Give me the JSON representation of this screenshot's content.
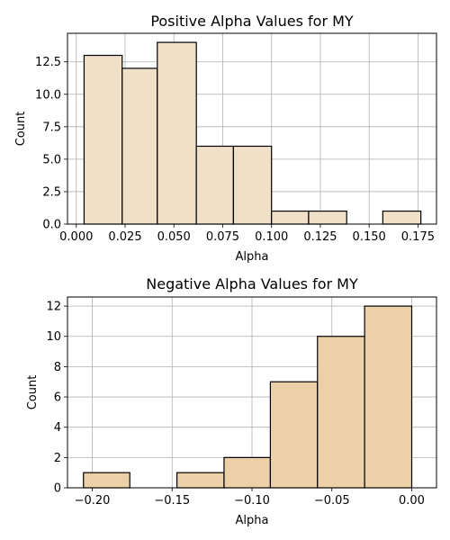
{
  "figure": {
    "background": "#ffffff"
  },
  "chart_data": [
    {
      "type": "histogram",
      "title": "Positive Alpha Values for MY",
      "xlabel": "Alpha",
      "ylabel": "Count",
      "bar_color": "#f0e0c8",
      "edge_color": "#000000",
      "grid": true,
      "xlim": [
        -0.0045,
        0.1845
      ],
      "ylim": [
        0,
        14.7
      ],
      "xticks": [
        0.0,
        0.025,
        0.05,
        0.075,
        0.1,
        0.125,
        0.15,
        0.175
      ],
      "xtick_labels": [
        "0.000",
        "0.025",
        "0.050",
        "0.075",
        "0.100",
        "0.125",
        "0.150",
        "0.175"
      ],
      "yticks": [
        0,
        2.5,
        5,
        7.5,
        10,
        12.5
      ],
      "ytick_labels": [
        "0.0",
        "2.5",
        "5.0",
        "7.5",
        "10.0",
        "12.5"
      ],
      "bins": [
        {
          "start": 0.004,
          "end": 0.0235,
          "count": 13
        },
        {
          "start": 0.0235,
          "end": 0.0415,
          "count": 12
        },
        {
          "start": 0.0415,
          "end": 0.0615,
          "count": 14
        },
        {
          "start": 0.0615,
          "end": 0.0805,
          "count": 6
        },
        {
          "start": 0.0805,
          "end": 0.1,
          "count": 6
        },
        {
          "start": 0.1,
          "end": 0.119,
          "count": 1
        },
        {
          "start": 0.119,
          "end": 0.1385,
          "count": 1
        },
        {
          "start": 0.1385,
          "end": 0.157,
          "count": 0
        },
        {
          "start": 0.157,
          "end": 0.1765,
          "count": 1
        }
      ]
    },
    {
      "type": "histogram",
      "title": "Negative Alpha Values for MY",
      "xlabel": "Alpha",
      "ylabel": "Count",
      "bar_color": "#ecd0a8",
      "edge_color": "#000000",
      "grid": true,
      "xlim": [
        -0.2155,
        0.0155
      ],
      "ylim": [
        0,
        12.6
      ],
      "xticks": [
        -0.2,
        -0.15,
        -0.1,
        -0.05,
        0.0
      ],
      "xtick_labels": [
        "−0.20",
        "−0.15",
        "−0.10",
        "−0.05",
        "0.00"
      ],
      "yticks": [
        0,
        2,
        4,
        6,
        8,
        10,
        12
      ],
      "ytick_labels": [
        "0",
        "2",
        "4",
        "6",
        "8",
        "10",
        "12"
      ],
      "bins": [
        {
          "start": -0.2055,
          "end": -0.1765,
          "count": 1
        },
        {
          "start": -0.1765,
          "end": -0.147,
          "count": 0
        },
        {
          "start": -0.147,
          "end": -0.1175,
          "count": 1
        },
        {
          "start": -0.1175,
          "end": -0.0885,
          "count": 2
        },
        {
          "start": -0.0885,
          "end": -0.059,
          "count": 7
        },
        {
          "start": -0.059,
          "end": -0.0295,
          "count": 10
        },
        {
          "start": -0.0295,
          "end": 0.0,
          "count": 12
        }
      ]
    }
  ]
}
